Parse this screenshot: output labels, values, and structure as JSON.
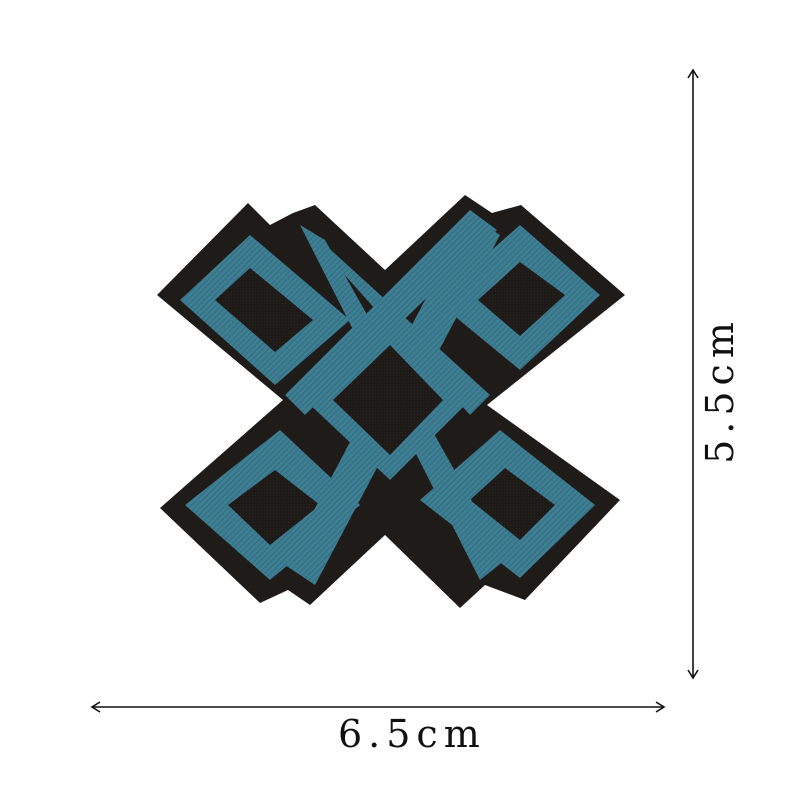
{
  "product": {
    "dimensions": {
      "width_label": "6.5cm",
      "height_label": "5.5cm"
    },
    "colors": {
      "thread_blue": "#3f7f94",
      "thread_blue_dark": "#2c6375",
      "backing_black": "#1e1a18",
      "border_dark": "#2a2522",
      "arrow_line": "#111111"
    }
  }
}
